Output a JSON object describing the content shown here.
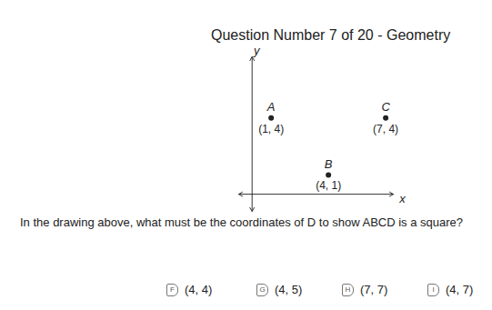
{
  "header": {
    "title": "Question Number 7 of 20 - Geometry"
  },
  "chart_data": {
    "type": "scatter",
    "names": [
      "A",
      "B",
      "C"
    ],
    "x": [
      1,
      4,
      7
    ],
    "values": [
      4,
      1,
      4
    ],
    "value_labels": [
      "(1, 4)",
      "(4, 1)",
      "(7, 4)"
    ],
    "x_label": "x",
    "y_label": "y",
    "xlim": [
      -0.7,
      7.4
    ],
    "ylim": [
      -0.9,
      7.2
    ],
    "tick_labels": false,
    "color": "#222222"
  },
  "question": {
    "text": "In the drawing above, what must be the coordinates of D to show ABCD is a square?"
  },
  "answers": [
    {
      "letter": "F",
      "text": "(4, 4)"
    },
    {
      "letter": "G",
      "text": "(4, 5)"
    },
    {
      "letter": "H",
      "text": "(7, 7)"
    },
    {
      "letter": "I",
      "text": "(4, 7)"
    }
  ]
}
